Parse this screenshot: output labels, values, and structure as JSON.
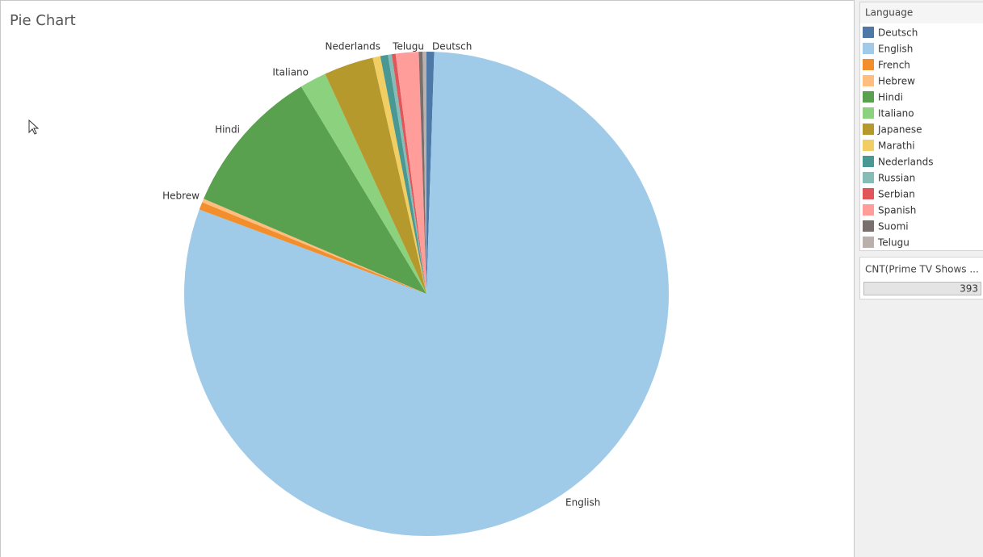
{
  "chart_data": {
    "type": "pie",
    "title": "Pie Chart",
    "legend_title": "Language",
    "categories": [
      "Deutsch",
      "English",
      "French",
      "Hebrew",
      "Hindi",
      "Italiano",
      "Japanese",
      "Marathi",
      "Nederlands",
      "Russian",
      "Serbian",
      "Spanish",
      "Suomi",
      "Telugu"
    ],
    "values": [
      2,
      315,
      2,
      1,
      39,
      7,
      13,
      2,
      2,
      1,
      1,
      6,
      1,
      1
    ],
    "colors": [
      "#4e79a7",
      "#a0cbe8",
      "#f28e2b",
      "#ffbe7d",
      "#59a14f",
      "#8cd17d",
      "#b6992d",
      "#f1ce63",
      "#499894",
      "#86bcb6",
      "#e15759",
      "#ff9d9a",
      "#79706e",
      "#bab0ac"
    ],
    "size_legend": {
      "title": "CNT(Prime TV Shows ...",
      "value": 393
    }
  }
}
